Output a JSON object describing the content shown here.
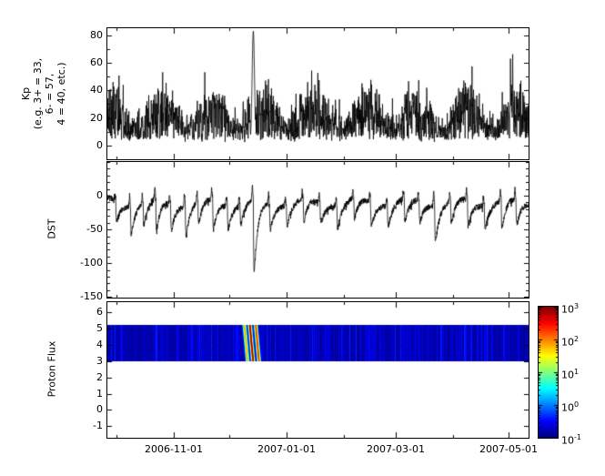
{
  "chart_data": {
    "type": "line",
    "background": "#ffffff",
    "line_color": "#000000",
    "x_axis": {
      "range": [
        "2006-09-26",
        "2007-05-12"
      ],
      "tick_labels": [
        "2006-11-01",
        "2007-01-01",
        "2007-03-01",
        "2007-05-01"
      ]
    },
    "panels": [
      {
        "id": "kp",
        "ylabel_lines": [
          "Kp",
          "(e.g. 3+ = 33,",
          "6- = 57,",
          "4 = 40, etc.)"
        ],
        "ylim": [
          -10,
          85
        ],
        "ytick_labels": [
          "80",
          "60",
          "40",
          "20",
          "0"
        ],
        "ytick_values": [
          80,
          60,
          40,
          20,
          0
        ],
        "description": "3-hourly Kp index, noisy 0-60 with recurrent activity",
        "peaks": [
          {
            "frac": 0.3465,
            "value": 83
          }
        ]
      },
      {
        "id": "dst",
        "ylabel": "DST",
        "ylim": [
          -151,
          50
        ],
        "ytick_labels": [
          "0",
          "-50",
          "-100",
          "-150"
        ],
        "ytick_values": [
          0,
          -50,
          -100,
          -150
        ],
        "quiet_level": -10,
        "storms": [
          {
            "f": 0.02,
            "d": -40
          },
          {
            "f": 0.055,
            "d": -55
          },
          {
            "f": 0.085,
            "d": -45
          },
          {
            "f": 0.115,
            "d": -60
          },
          {
            "f": 0.15,
            "d": -50
          },
          {
            "f": 0.185,
            "d": -60
          },
          {
            "f": 0.215,
            "d": -45
          },
          {
            "f": 0.25,
            "d": -55
          },
          {
            "f": 0.285,
            "d": -45
          },
          {
            "f": 0.315,
            "d": -40
          },
          {
            "f": 0.3465,
            "d": -140
          },
          {
            "f": 0.385,
            "d": -50
          },
          {
            "f": 0.425,
            "d": -40
          },
          {
            "f": 0.465,
            "d": -45
          },
          {
            "f": 0.505,
            "d": -40
          },
          {
            "f": 0.545,
            "d": -45
          },
          {
            "f": 0.585,
            "d": -40
          },
          {
            "f": 0.625,
            "d": -45
          },
          {
            "f": 0.665,
            "d": -40
          },
          {
            "f": 0.705,
            "d": -45
          },
          {
            "f": 0.74,
            "d": -40
          },
          {
            "f": 0.777,
            "d": -70
          },
          {
            "f": 0.815,
            "d": -45
          },
          {
            "f": 0.855,
            "d": -50
          },
          {
            "f": 0.895,
            "d": -45
          },
          {
            "f": 0.935,
            "d": -55
          },
          {
            "f": 0.97,
            "d": -50
          }
        ]
      },
      {
        "id": "proton",
        "ylabel": "Proton Flux",
        "ylim": [
          -1.7,
          6.6
        ],
        "ytick_labels": [
          "6",
          "5",
          "4",
          "3",
          "2",
          "1",
          "0",
          "-1"
        ],
        "ytick_values": [
          6,
          5,
          4,
          3,
          2,
          1,
          0,
          -1
        ],
        "band": {
          "ymin": 3.0,
          "ymax": 5.2,
          "background_log10": -0.92
        },
        "events": [
          {
            "frac": 0.325,
            "peak_log10": 1.9,
            "width": 0.0045
          },
          {
            "frac": 0.338,
            "peak_log10": 2.9,
            "width": 0.0045
          },
          {
            "frac": 0.352,
            "peak_log10": 2.4,
            "width": 0.0045
          }
        ]
      }
    ],
    "colorbar": {
      "colormap": "jet",
      "scale_log10_range": [
        -1,
        3
      ],
      "tick_values": [
        3,
        2,
        1,
        0,
        -1
      ],
      "ticks": [
        {
          "base": "10",
          "exp": "3"
        },
        {
          "base": "10",
          "exp": "2"
        },
        {
          "base": "10",
          "exp": "1"
        },
        {
          "base": "10",
          "exp": "0"
        },
        {
          "base": "10",
          "exp": "-1"
        }
      ]
    }
  }
}
